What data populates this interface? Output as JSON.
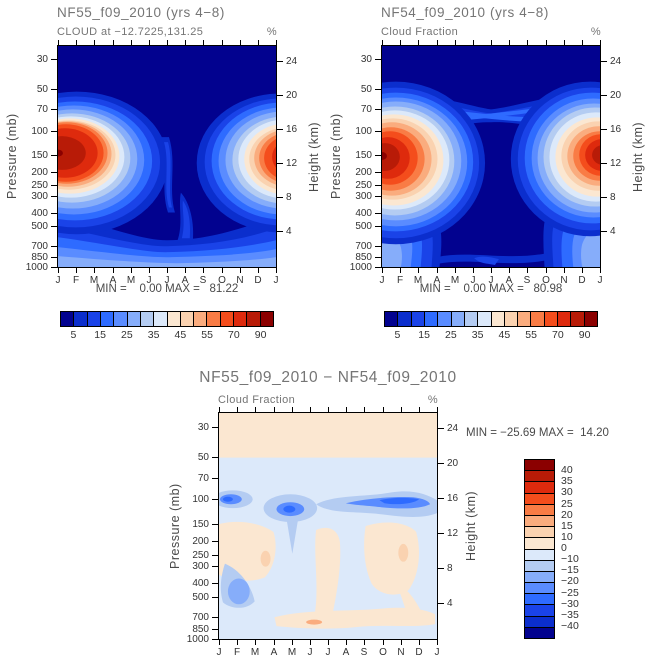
{
  "palette": [
    "#02028F",
    "#0B2ECD",
    "#1A43E8",
    "#2E6BFF",
    "#5A8CFF",
    "#86ADFA",
    "#B4CCF2",
    "#DCE9FA",
    "#FBE7D1",
    "#FAD2B0",
    "#FAAC7E",
    "#F97C45",
    "#F44D1C",
    "#DE2A0D",
    "#B81B07",
    "#8B0000"
  ],
  "axes": {
    "pressure_label": "Pressure (mb)",
    "pressure_ticks": [
      "30",
      "50",
      "70",
      "100",
      "150",
      "200",
      "250",
      "300",
      "400",
      "500",
      "700",
      "850",
      "1000"
    ],
    "height_label": "Height (km)",
    "height_ticks": [
      "24",
      "20",
      "16",
      "12",
      "8",
      "4"
    ],
    "months": [
      "J",
      "F",
      "M",
      "A",
      "M",
      "J",
      "J",
      "A",
      "S",
      "O",
      "N",
      "D",
      "J"
    ]
  },
  "panels": {
    "a": {
      "title": "NF55_f09_2010 (yrs 4−8)",
      "subtitle": "CLOUD at −12.7225,131.25",
      "units": "%",
      "stats": "MIN =    0.00 MAX =   81.22"
    },
    "b": {
      "title": "NF54_f09_2010 (yrs 4−8)",
      "subtitle": "Cloud Fraction",
      "units": "%",
      "stats": "MIN =    0.00 MAX =   80.98"
    },
    "c": {
      "title": "NF55_f09_2010 − NF54_f09_2010",
      "subtitle": "Cloud Fraction",
      "units": "%",
      "stats": "MIN = −25.69 MAX =  14.20"
    }
  },
  "colorbar": {
    "labels": [
      "5",
      "15",
      "25",
      "35",
      "45",
      "55",
      "70",
      "90"
    ]
  },
  "diff_colorbar": {
    "labels": [
      "40",
      "35",
      "30",
      "25",
      "20",
      "15",
      "10",
      "0",
      "−10",
      "−15",
      "−20",
      "−25",
      "−30",
      "−35",
      "−40"
    ]
  },
  "chart_data": [
    {
      "type": "heatmap",
      "title": "NF55_f09_2010 (yrs 4−8)",
      "subtitle": "CLOUD at −12.7225,131.25",
      "units": "%",
      "x": [
        "J",
        "F",
        "M",
        "A",
        "M",
        "J",
        "J",
        "A",
        "S",
        "O",
        "N",
        "D"
      ],
      "y_pressure_mb": [
        30,
        50,
        70,
        100,
        150,
        200,
        250,
        300,
        400,
        500,
        700,
        850,
        1000
      ],
      "y2_height_km": [
        24,
        20,
        16,
        12,
        8,
        4
      ],
      "contour_levels": [
        5,
        10,
        15,
        20,
        25,
        30,
        35,
        40,
        45,
        50,
        55,
        60,
        70,
        80,
        90
      ],
      "min": 0.0,
      "max": 81.22,
      "legend_position": "bottom",
      "values_by_pressure": {
        "30": [
          0,
          0,
          0,
          0,
          0,
          0,
          0,
          0,
          0,
          0,
          0,
          0
        ],
        "50": [
          0,
          0,
          0,
          0,
          0,
          0,
          0,
          0,
          0,
          0,
          0,
          0
        ],
        "70": [
          2,
          2,
          1,
          0,
          0,
          0,
          0,
          0,
          0,
          0,
          1,
          1
        ],
        "100": [
          45,
          52,
          28,
          10,
          4,
          2,
          1,
          1,
          2,
          6,
          18,
          35
        ],
        "150": [
          76,
          81,
          55,
          25,
          8,
          3,
          2,
          2,
          5,
          22,
          55,
          70
        ],
        "200": [
          70,
          75,
          50,
          24,
          8,
          3,
          2,
          2,
          5,
          24,
          58,
          68
        ],
        "250": [
          58,
          62,
          40,
          20,
          8,
          4,
          3,
          3,
          6,
          20,
          45,
          55
        ],
        "300": [
          45,
          48,
          30,
          15,
          7,
          4,
          3,
          3,
          5,
          15,
          35,
          42
        ],
        "400": [
          30,
          32,
          20,
          10,
          6,
          4,
          3,
          3,
          5,
          10,
          22,
          28
        ],
        "500": [
          22,
          24,
          15,
          8,
          5,
          4,
          3,
          3,
          4,
          8,
          15,
          20
        ],
        "700": [
          15,
          16,
          12,
          8,
          5,
          5,
          4,
          4,
          5,
          7,
          10,
          13
        ],
        "850": [
          18,
          18,
          14,
          10,
          8,
          7,
          6,
          6,
          7,
          8,
          12,
          15
        ],
        "1000": [
          10,
          10,
          8,
          6,
          5,
          5,
          4,
          4,
          4,
          5,
          7,
          8
        ]
      }
    },
    {
      "type": "heatmap",
      "title": "NF54_f09_2010 (yrs 4−8)",
      "subtitle": "Cloud Fraction",
      "units": "%",
      "x": [
        "J",
        "F",
        "M",
        "A",
        "M",
        "J",
        "J",
        "A",
        "S",
        "O",
        "N",
        "D"
      ],
      "y_pressure_mb": [
        30,
        50,
        70,
        100,
        150,
        200,
        250,
        300,
        400,
        500,
        700,
        850,
        1000
      ],
      "y2_height_km": [
        24,
        20,
        16,
        12,
        8,
        4
      ],
      "contour_levels": [
        5,
        10,
        15,
        20,
        25,
        30,
        35,
        40,
        45,
        50,
        55,
        60,
        70,
        80,
        90
      ],
      "min": 0.0,
      "max": 80.98,
      "legend_position": "bottom",
      "values_by_pressure": {
        "30": [
          0,
          0,
          0,
          0,
          0,
          0,
          0,
          0,
          0,
          0,
          0,
          0
        ],
        "50": [
          0,
          0,
          0,
          0,
          0,
          0,
          0,
          0,
          0,
          0,
          0,
          0
        ],
        "70": [
          3,
          3,
          2,
          1,
          0,
          0,
          0,
          0,
          0,
          1,
          2,
          2
        ],
        "100": [
          50,
          56,
          32,
          16,
          10,
          8,
          8,
          8,
          10,
          16,
          32,
          45
        ],
        "150": [
          78,
          81,
          55,
          26,
          12,
          8,
          6,
          6,
          10,
          26,
          60,
          75
        ],
        "200": [
          70,
          76,
          52,
          24,
          10,
          5,
          4,
          4,
          8,
          25,
          58,
          70
        ],
        "250": [
          60,
          64,
          42,
          20,
          8,
          4,
          3,
          3,
          6,
          20,
          46,
          58
        ],
        "300": [
          48,
          50,
          32,
          15,
          7,
          4,
          3,
          3,
          5,
          15,
          36,
          44
        ],
        "400": [
          32,
          34,
          22,
          10,
          6,
          4,
          3,
          3,
          5,
          10,
          24,
          30
        ],
        "500": [
          24,
          26,
          16,
          8,
          5,
          4,
          3,
          3,
          4,
          8,
          16,
          22
        ],
        "700": [
          16,
          17,
          12,
          8,
          5,
          5,
          4,
          4,
          5,
          7,
          11,
          14
        ],
        "850": [
          18,
          19,
          15,
          10,
          8,
          7,
          6,
          6,
          7,
          8,
          12,
          16
        ],
        "1000": [
          10,
          10,
          8,
          6,
          5,
          5,
          4,
          4,
          4,
          5,
          7,
          8
        ]
      }
    },
    {
      "type": "heatmap",
      "title": "NF55_f09_2010 − NF54_f09_2010",
      "subtitle": "Cloud Fraction",
      "units": "%",
      "x": [
        "J",
        "F",
        "M",
        "A",
        "M",
        "J",
        "J",
        "A",
        "S",
        "O",
        "N",
        "D"
      ],
      "y_pressure_mb": [
        30,
        50,
        70,
        100,
        150,
        200,
        250,
        300,
        400,
        500,
        700,
        850,
        1000
      ],
      "y2_height_km": [
        24,
        20,
        16,
        12,
        8,
        4
      ],
      "contour_levels": [
        -40,
        -35,
        -30,
        -25,
        -20,
        -15,
        -10,
        0,
        10,
        15,
        20,
        25,
        30,
        35,
        40
      ],
      "min": -25.69,
      "max": 14.2,
      "legend_position": "right",
      "values_by_pressure": {
        "30": [
          2,
          2,
          2,
          2,
          2,
          2,
          2,
          2,
          2,
          2,
          2,
          2
        ],
        "50": [
          2,
          2,
          2,
          2,
          2,
          2,
          2,
          2,
          2,
          2,
          2,
          2
        ],
        "70": [
          -3,
          -3,
          -3,
          -3,
          -3,
          -3,
          -3,
          -3,
          -3,
          -3,
          -3,
          -3
        ],
        "100": [
          -12,
          -6,
          -4,
          -14,
          -18,
          -8,
          -10,
          -14,
          -22,
          -26,
          -18,
          -10
        ],
        "150": [
          -2,
          1,
          2,
          -4,
          -8,
          -3,
          -2,
          -2,
          -6,
          -8,
          -4,
          -2
        ],
        "200": [
          2,
          3,
          2,
          1,
          -1,
          1,
          2,
          1,
          1,
          3,
          3,
          2
        ],
        "250": [
          2,
          4,
          2,
          1,
          -1,
          1,
          2,
          1,
          1,
          4,
          4,
          2
        ],
        "300": [
          1,
          3,
          1,
          -2,
          -1,
          1,
          1,
          1,
          2,
          3,
          3,
          1
        ],
        "400": [
          -2,
          2,
          1,
          -2,
          -1,
          1,
          1,
          1,
          2,
          4,
          2,
          1
        ],
        "500": [
          -6,
          -4,
          -1,
          -1,
          -1,
          1,
          1,
          1,
          1,
          2,
          1,
          -1
        ],
        "700": [
          -3,
          -2,
          -1,
          1,
          1,
          2,
          1,
          1,
          2,
          2,
          1,
          -2
        ],
        "850": [
          -2,
          -2,
          1,
          3,
          4,
          2,
          2,
          1,
          2,
          2,
          -1,
          -2
        ],
        "1000": [
          -2,
          -2,
          -1,
          1,
          2,
          1,
          1,
          1,
          1,
          1,
          -1,
          -2
        ]
      }
    }
  ]
}
